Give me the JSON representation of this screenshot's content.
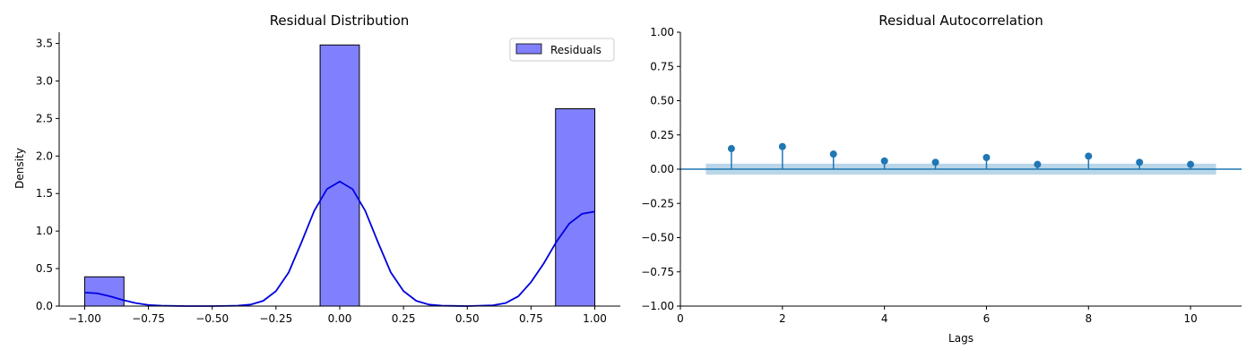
{
  "chart_data": [
    {
      "type": "bar",
      "title": "Residual Distribution",
      "xlabel": "",
      "ylabel": "Density",
      "xlim": [
        -1.1,
        1.1
      ],
      "ylim": [
        0,
        3.65
      ],
      "xticks": [
        -1.0,
        -0.75,
        -0.5,
        -0.25,
        0.0,
        0.25,
        0.5,
        0.75,
        1.0
      ],
      "xtick_labels": [
        "−1.00",
        "−0.75",
        "−0.50",
        "−0.25",
        "0.00",
        "0.25",
        "0.50",
        "0.75",
        "1.00"
      ],
      "yticks": [
        0.0,
        0.5,
        1.0,
        1.5,
        2.0,
        2.5,
        3.0,
        3.5
      ],
      "ytick_labels": [
        "0.0",
        "0.5",
        "1.0",
        "1.5",
        "2.0",
        "2.5",
        "3.0",
        "3.5"
      ],
      "bars": [
        {
          "x0": -1.0,
          "x1": -0.846,
          "value": 0.39
        },
        {
          "x0": -0.077,
          "x1": 0.077,
          "value": 3.48
        },
        {
          "x0": 0.846,
          "x1": 1.0,
          "value": 2.63
        }
      ],
      "bar_color": "#8080ff",
      "bar_edge": "#000000",
      "kde": {
        "x": [
          -1.0,
          -0.95,
          -0.9,
          -0.85,
          -0.8,
          -0.75,
          -0.7,
          -0.6,
          -0.5,
          -0.4,
          -0.35,
          -0.3,
          -0.25,
          -0.2,
          -0.15,
          -0.1,
          -0.05,
          0.0,
          0.05,
          0.1,
          0.15,
          0.2,
          0.25,
          0.3,
          0.35,
          0.4,
          0.5,
          0.6,
          0.65,
          0.7,
          0.75,
          0.8,
          0.85,
          0.9,
          0.95,
          1.0
        ],
        "y": [
          0.18,
          0.17,
          0.13,
          0.08,
          0.04,
          0.015,
          0.005,
          0.0,
          0.0,
          0.005,
          0.02,
          0.07,
          0.2,
          0.45,
          0.85,
          1.27,
          1.56,
          1.66,
          1.56,
          1.27,
          0.85,
          0.45,
          0.2,
          0.07,
          0.02,
          0.005,
          0.0,
          0.01,
          0.04,
          0.13,
          0.32,
          0.57,
          0.86,
          1.1,
          1.23,
          1.26
        ],
        "color": "#0000e0"
      },
      "legend": {
        "placement": "top-right",
        "label": "Residuals"
      }
    },
    {
      "type": "stem",
      "title": "Residual Autocorrelation",
      "xlabel": "Lags",
      "ylabel": "",
      "xlim": [
        0,
        11
      ],
      "ylim": [
        -1.0,
        1.0
      ],
      "xticks": [
        0,
        2,
        4,
        6,
        8,
        10
      ],
      "xtick_labels": [
        "0",
        "2",
        "4",
        "6",
        "8",
        "10"
      ],
      "yticks": [
        -1.0,
        -0.75,
        -0.5,
        -0.25,
        0.0,
        0.25,
        0.5,
        0.75,
        1.0
      ],
      "ytick_labels": [
        "−1.00",
        "−0.75",
        "−0.50",
        "−0.25",
        "0.00",
        "0.25",
        "0.50",
        "0.75",
        "1.00"
      ],
      "lags": [
        1,
        2,
        3,
        4,
        5,
        6,
        7,
        8,
        9,
        10
      ],
      "values": [
        0.15,
        0.165,
        0.11,
        0.06,
        0.05,
        0.085,
        0.035,
        0.095,
        0.05,
        0.035
      ],
      "confidence_band": {
        "x0": 0.5,
        "x1": 10.5,
        "lower": -0.04,
        "upper": 0.04
      },
      "stem_color": "#1f77b4",
      "band_color": "#a9cce3"
    }
  ]
}
